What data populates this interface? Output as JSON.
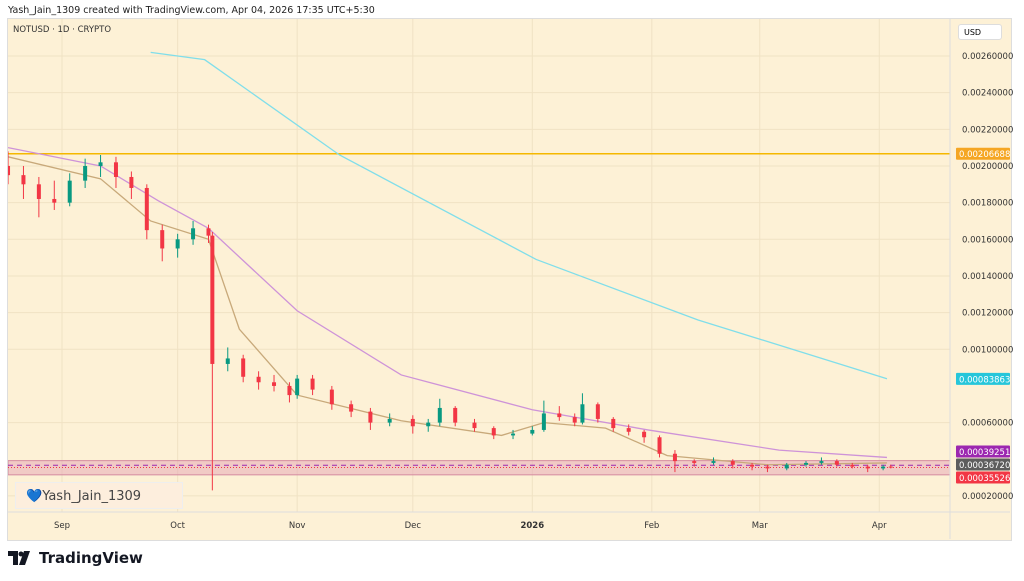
{
  "header": {
    "caption": "Yash_Jain_1309 created with TradingView.com, Apr 04, 2026 17:35 UTC+5:30"
  },
  "symbol": "NOTUSD · 1D · CRYPTO",
  "currency": "USD",
  "watermark": "Yash_Jain_1309",
  "watermark_icon": "blue-heart-icon",
  "brand": "TradingView",
  "chart_data": {
    "type": "candlestick",
    "ylim": [
      0.00012,
      0.0028
    ],
    "y_ticks": [
      "0.00260000",
      "0.00240000",
      "0.00220000",
      "0.00200000",
      "0.00180000",
      "0.00160000",
      "0.00140000",
      "0.00120000",
      "0.00100000",
      "0.00060000",
      "0.00020000"
    ],
    "x_ticks": [
      {
        "label": "Sep",
        "date": "2025-09-01"
      },
      {
        "label": "Oct",
        "date": "2025-10-01"
      },
      {
        "label": "Nov",
        "date": "2025-11-01"
      },
      {
        "label": "Dec",
        "date": "2025-12-01"
      },
      {
        "label": "2026",
        "date": "2026-01-01",
        "bold": true
      },
      {
        "label": "Feb",
        "date": "2026-02-01"
      },
      {
        "label": "Mar",
        "date": "2026-03-01"
      },
      {
        "label": "Apr",
        "date": "2026-04-01"
      }
    ],
    "candles": [
      [
        "2025-08-18",
        0.002,
        0.00208,
        0.0019,
        0.00195
      ],
      [
        "2025-08-22",
        0.00195,
        0.002,
        0.00182,
        0.0019
      ],
      [
        "2025-08-26",
        0.0019,
        0.00194,
        0.00172,
        0.00182
      ],
      [
        "2025-08-30",
        0.00182,
        0.00192,
        0.00176,
        0.0018
      ],
      [
        "2025-09-03",
        0.0018,
        0.00196,
        0.00178,
        0.00192
      ],
      [
        "2025-09-07",
        0.00192,
        0.00204,
        0.00188,
        0.002
      ],
      [
        "2025-09-11",
        0.002,
        0.00206,
        0.00194,
        0.00202
      ],
      [
        "2025-09-15",
        0.00202,
        0.00205,
        0.00188,
        0.00194
      ],
      [
        "2025-09-19",
        0.00194,
        0.00197,
        0.00182,
        0.00188
      ],
      [
        "2025-09-23",
        0.00188,
        0.0019,
        0.0016,
        0.00165
      ],
      [
        "2025-09-27",
        0.00165,
        0.00168,
        0.00148,
        0.00155
      ],
      [
        "2025-10-01",
        0.00155,
        0.00163,
        0.0015,
        0.0016
      ],
      [
        "2025-10-05",
        0.0016,
        0.0017,
        0.00157,
        0.00166
      ],
      [
        "2025-10-09",
        0.00166,
        0.00168,
        0.00158,
        0.00162
      ],
      [
        "2025-10-10",
        0.00162,
        0.00164,
        0.00023,
        0.00092
      ],
      [
        "2025-10-14",
        0.00092,
        0.00101,
        0.00088,
        0.00095
      ],
      [
        "2025-10-18",
        0.00095,
        0.00097,
        0.00082,
        0.00085
      ],
      [
        "2025-10-22",
        0.00085,
        0.00088,
        0.00078,
        0.00082
      ],
      [
        "2025-10-26",
        0.00082,
        0.00086,
        0.00077,
        0.0008
      ],
      [
        "2025-10-30",
        0.0008,
        0.00082,
        0.00071,
        0.00075
      ],
      [
        "2025-11-01",
        0.00075,
        0.00086,
        0.00073,
        0.00084
      ],
      [
        "2025-11-05",
        0.00084,
        0.00086,
        0.00075,
        0.00078
      ],
      [
        "2025-11-10",
        0.00078,
        0.0008,
        0.00067,
        0.0007
      ],
      [
        "2025-11-15",
        0.0007,
        0.00072,
        0.00063,
        0.00066
      ],
      [
        "2025-11-20",
        0.00066,
        0.00068,
        0.00056,
        0.0006
      ],
      [
        "2025-11-25",
        0.0006,
        0.00065,
        0.00058,
        0.00062
      ],
      [
        "2025-12-01",
        0.00062,
        0.00064,
        0.00054,
        0.00058
      ],
      [
        "2025-12-05",
        0.00058,
        0.00062,
        0.00055,
        0.0006
      ],
      [
        "2025-12-08",
        0.0006,
        0.00073,
        0.00058,
        0.00068
      ],
      [
        "2025-12-12",
        0.00068,
        0.00069,
        0.00058,
        0.0006
      ],
      [
        "2025-12-17",
        0.0006,
        0.00062,
        0.00055,
        0.00057
      ],
      [
        "2025-12-22",
        0.00057,
        0.00058,
        0.00051,
        0.00053
      ],
      [
        "2025-12-27",
        0.00053,
        0.00056,
        0.00051,
        0.00054
      ],
      [
        "2026-01-01",
        0.00054,
        0.00058,
        0.00053,
        0.00056
      ],
      [
        "2026-01-04",
        0.00056,
        0.00072,
        0.00055,
        0.00065
      ],
      [
        "2026-01-08",
        0.00065,
        0.00069,
        0.00061,
        0.00063
      ],
      [
        "2026-01-12",
        0.00063,
        0.00065,
        0.00058,
        0.0006
      ],
      [
        "2026-01-14",
        0.0006,
        0.00076,
        0.00059,
        0.0007
      ],
      [
        "2026-01-18",
        0.0007,
        0.00071,
        0.0006,
        0.00062
      ],
      [
        "2026-01-22",
        0.00062,
        0.00063,
        0.00055,
        0.00057
      ],
      [
        "2026-01-26",
        0.00057,
        0.00059,
        0.00053,
        0.00055
      ],
      [
        "2026-01-30",
        0.00055,
        0.00056,
        0.00049,
        0.00052
      ],
      [
        "2026-02-03",
        0.00052,
        0.00053,
        0.00041,
        0.00043
      ],
      [
        "2026-02-07",
        0.00043,
        0.00045,
        0.00033,
        0.00039
      ],
      [
        "2026-02-12",
        0.00039,
        0.0004,
        0.00036,
        0.00038
      ],
      [
        "2026-02-17",
        0.00038,
        0.00041,
        0.00037,
        0.00039
      ],
      [
        "2026-02-22",
        0.00039,
        0.0004,
        0.00035,
        0.00037
      ],
      [
        "2026-02-27",
        0.00037,
        0.00038,
        0.00034,
        0.00036
      ],
      [
        "2026-03-03",
        0.00036,
        0.00037,
        0.00033,
        0.00035
      ],
      [
        "2026-03-08",
        0.00035,
        0.00038,
        0.00034,
        0.00037
      ],
      [
        "2026-03-13",
        0.00037,
        0.00039,
        0.00036,
        0.00038
      ],
      [
        "2026-03-17",
        0.00038,
        0.00041,
        0.00037,
        0.00039
      ],
      [
        "2026-03-21",
        0.00039,
        0.0004,
        0.00036,
        0.00037
      ],
      [
        "2026-03-25",
        0.00037,
        0.00038,
        0.00035,
        0.00036
      ],
      [
        "2026-03-29",
        0.00036,
        0.00037,
        0.00033,
        0.00035
      ],
      [
        "2026-04-02",
        0.00035,
        0.00037,
        0.00034,
        0.00036
      ],
      [
        "2026-04-04",
        0.00036,
        0.00037,
        0.00035,
        0.000355
      ]
    ],
    "moving_averages": [
      {
        "color": "#80deea",
        "points": [
          [
            "2025-09-24",
            0.00262
          ],
          [
            "2025-10-08",
            0.00258
          ],
          [
            "2025-11-12",
            0.00206
          ],
          [
            "2026-01-02",
            0.00149
          ],
          [
            "2026-02-13",
            0.00116
          ],
          [
            "2026-04-03",
            0.000839
          ]
        ]
      },
      {
        "color": "#ce93d8",
        "points": [
          [
            "2025-08-18",
            0.0021
          ],
          [
            "2025-09-11",
            0.002
          ],
          [
            "2025-09-26",
            0.00181
          ],
          [
            "2025-10-09",
            0.00166
          ],
          [
            "2025-11-01",
            0.00121
          ],
          [
            "2025-11-28",
            0.00086
          ],
          [
            "2026-01-01",
            0.00067
          ],
          [
            "2026-01-31",
            0.00056
          ],
          [
            "2026-03-06",
            0.00045
          ],
          [
            "2026-04-03",
            0.00041
          ]
        ]
      },
      {
        "color": "#c8a97a",
        "points": [
          [
            "2025-08-18",
            0.00205
          ],
          [
            "2025-09-11",
            0.00193
          ],
          [
            "2025-09-24",
            0.0017
          ],
          [
            "2025-10-09",
            0.0016
          ],
          [
            "2025-10-17",
            0.00111
          ],
          [
            "2025-11-01",
            0.00075
          ],
          [
            "2025-11-28",
            0.00061
          ],
          [
            "2025-12-24",
            0.00053
          ],
          [
            "2026-01-04",
            0.0006
          ],
          [
            "2026-01-20",
            0.00057
          ],
          [
            "2026-02-05",
            0.00042
          ],
          [
            "2026-03-03",
            0.00037
          ],
          [
            "2026-04-03",
            0.00038
          ]
        ]
      }
    ],
    "hline": {
      "value": 0.00206688,
      "label": "0.00206688",
      "color": "#f5b800"
    },
    "zone": {
      "top": 0.00039251,
      "bottom": 0.000315,
      "color": "#e8a9b8"
    },
    "price_labels": [
      {
        "label": "0.00206688",
        "value": 0.00206688,
        "color": "#f5a623"
      },
      {
        "label": "0.00083863",
        "value": 0.00083863,
        "color": "#26c6da"
      },
      {
        "label": "0.00039251",
        "value": 0.00039251,
        "color": "#9c27b0"
      },
      {
        "label": "0.00036720",
        "value": 0.0003672,
        "color": "#5d5d5d"
      },
      {
        "label": "0.00035526",
        "value": 0.00035526,
        "color": "#f23645"
      }
    ],
    "up_color": "#089981",
    "down_color": "#f23645"
  }
}
